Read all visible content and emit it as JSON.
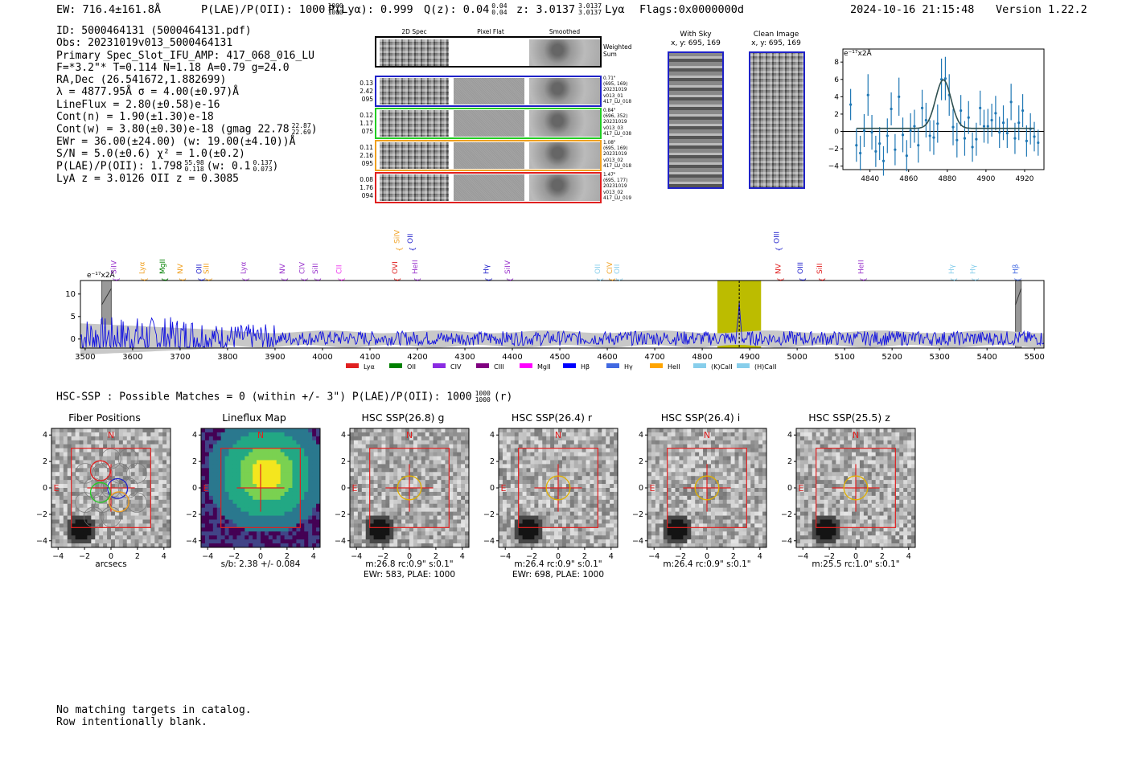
{
  "header": {
    "ew": "EW: 716.4±161.8Å",
    "plae": "P(LAE)/P(OII): 1000",
    "plae_hi": "1000",
    "plae_lo": "1000",
    "plya": "P(Lyα): 0.999",
    "qz": "Q(z): 0.04",
    "qz_hi": "0.04",
    "qz_lo": "0.04",
    "z": "z: 3.0137",
    "z_hi": "3.0137",
    "z_lo": "3.0137",
    "z_line": "Lyα",
    "flags": "Flags:0x0000000d",
    "timestamp": "2024-10-16 21:15:48",
    "version": "Version 1.22.2"
  },
  "info": {
    "id": "ID: 5000464131 (5000464131.pdf)",
    "obs": "Obs: 20231019v013_5000464131",
    "slot": "Primary Spec_Slot_IFU_AMP: 417_068_016_LU",
    "fwhm": "F=*3.2\"*  T=0.114  N=1.18  A=0.79  g=24.0",
    "radec": "RA,Dec (26.541672,1.882699)",
    "lambda": "λ = 4877.95Å   σ = 4.00(±0.97)Å",
    "lineflux": "LineFlux = 2.80(±0.58)e-16",
    "contn": "Cont(n) = 1.90(±1.30)e-18",
    "contw": "Cont(w) = 3.80(±0.30)e-18 (gmag 22.78",
    "contw_hi": "22.87",
    "contw_lo": "22.69",
    "ewr": "EWr = 36.00(±24.00) (w: 19.00(±4.10))Å",
    "sn": "S/N = 5.0(±0.6)  χ² = 1.0(±0.2)",
    "plae2": "P(LAE)/P(OII): 1.798",
    "plae2_hi": "55.98",
    "plae2_lo": "0.118",
    "plae2_w": "(w: 0.1",
    "plae2_w_hi": "0.137",
    "plae2_w_lo": "0.073",
    "lyaz": "LyA z = 3.0126  OII z = 0.3085"
  },
  "fiber_panel": {
    "col_2d": "2D Spec",
    "col_flat": "Pixel Flat",
    "col_smooth": "Smoothed",
    "weighted": "Weighted Sum",
    "rows": [
      {
        "left": [
          "0.13",
          "2.42",
          "095"
        ],
        "right": [
          "0.71\"",
          "(695, 169)",
          "20231019",
          "v013_01",
          "417_LU_018"
        ],
        "color": "#1f22c8"
      },
      {
        "left": [
          "0.12",
          "1.17",
          "075"
        ],
        "right": [
          "0.84\"",
          "(696, 352)",
          "20231019",
          "v013_03",
          "417_LU_038"
        ],
        "color": "#22cc22"
      },
      {
        "left": [
          "0.11",
          "2.16",
          "095"
        ],
        "right": [
          "1.08\"",
          "(695, 169)",
          "20231019",
          "v013_02",
          "417_LU_018"
        ],
        "color": "#f0a020"
      },
      {
        "left": [
          "0.08",
          "1.76",
          "094"
        ],
        "right": [
          "1.47\"",
          "(695, 177)",
          "20231019",
          "v013_02",
          "417_LU_019"
        ],
        "color": "#e02020"
      }
    ]
  },
  "sky": {
    "with_sky": "With Sky",
    "with_sky_xy": "x, y: 695, 169",
    "clean": "Clean Image",
    "clean_xy": "x, y: 695, 169"
  },
  "fit_plot": {
    "unit": "e⁻¹⁷x2Å",
    "xticks": [
      "4840",
      "4860",
      "4880",
      "4900",
      "4920"
    ],
    "yticks": [
      "8",
      "6",
      "4",
      "2",
      "0",
      "−2",
      "−4"
    ]
  },
  "chart_data": [
    {
      "type": "scatter",
      "title": "",
      "ylabel": "e-17 x2Å",
      "xlim": [
        4826,
        4930
      ],
      "ylim": [
        -4.4,
        9.5
      ],
      "points_x": [
        4830,
        4833,
        4835,
        4837,
        4839,
        4841,
        4843,
        4845,
        4847,
        4849,
        4851,
        4853,
        4855,
        4857,
        4859,
        4861,
        4863,
        4865,
        4867,
        4869,
        4871,
        4873,
        4875,
        4877,
        4879,
        4881,
        4883,
        4885,
        4887,
        4889,
        4891,
        4893,
        4895,
        4897,
        4899,
        4901,
        4903,
        4905,
        4907,
        4909,
        4911,
        4913,
        4915,
        4917,
        4919,
        4921,
        4923,
        4925,
        4927
      ],
      "points_y": [
        3.1,
        -1.6,
        -2.5,
        0.1,
        4.2,
        -0.1,
        -2.3,
        -1.4,
        -3.4,
        -0.5,
        2.6,
        -2.1,
        4,
        -0.4,
        -2.8,
        0.1,
        0.6,
        -1.6,
        2.7,
        1.3,
        -0.5,
        -0.7,
        0.9,
        6,
        6.1,
        4.2,
        0.5,
        -1,
        2.4,
        -0.8,
        1.6,
        -1.8,
        -0.9,
        2.7,
        0.6,
        0.6,
        1.3,
        2.1,
        -0.1,
        1,
        -0.2,
        3.4,
        -0.8,
        1,
        2.4,
        -1.1,
        0.3,
        -0.6,
        -1.3
      ],
      "errors": [
        1.8,
        1.9,
        2,
        1.9,
        2.4,
        2,
        1.8,
        1.9,
        1.7,
        2,
        1.9,
        1.8,
        2.2,
        2,
        1.8,
        2,
        1.9,
        2,
        2.1,
        2,
        1.8,
        2,
        2.2,
        2.4,
        2.5,
        2.4,
        2.1,
        2,
        1.8,
        2,
        1.9,
        1.7,
        1.9,
        2,
        1.9,
        2,
        1.9,
        2,
        1.8,
        2,
        1.7,
        2.1,
        1.8,
        2,
        1.9,
        1.8,
        1.8,
        1.7,
        1.5
      ],
      "model": {
        "center": 4877.95,
        "sigma": 4.0,
        "amplitude": 5.6,
        "baseline": 0.35
      }
    },
    {
      "type": "line",
      "xlabel": "",
      "ylabel": "e-17x2Å",
      "xlim": [
        3490,
        5520
      ],
      "ylim": [
        -2,
        13
      ],
      "xticks": [
        3500,
        3600,
        3700,
        3800,
        3900,
        4000,
        4100,
        4200,
        4300,
        4400,
        4500,
        4600,
        4700,
        4800,
        4900,
        5000,
        5100,
        5200,
        5300,
        5400,
        5500
      ],
      "yticks": [
        0,
        5,
        10
      ],
      "highlight_band": [
        4832,
        4924
      ],
      "peak_marker": 4878,
      "masked_bands": [
        [
          3535,
          3555
        ],
        [
          5460,
          5472
        ]
      ],
      "line_labels": [
        {
          "label": "SiIV",
          "x": 3565,
          "color": "#9933cc",
          "upper": false
        },
        {
          "label": "Lyα",
          "x": 3625,
          "color": "#f0a020",
          "upper": false
        },
        {
          "label": "MgII",
          "x": 3668,
          "color": "#008000",
          "upper": false
        },
        {
          "label": "NV",
          "x": 3705,
          "color": "#f0a020",
          "upper": false
        },
        {
          "label": "OII",
          "x": 3745,
          "color": "#2222cc",
          "upper": false
        },
        {
          "label": "SiII",
          "x": 3760,
          "color": "#f0a020",
          "upper": false
        },
        {
          "label": "Lyα",
          "x": 3838,
          "color": "#9933cc",
          "upper": false
        },
        {
          "label": "NV",
          "x": 3920,
          "color": "#9933cc",
          "upper": false
        },
        {
          "label": "CIV",
          "x": 3962,
          "color": "#9933cc",
          "upper": false
        },
        {
          "label": "SiII",
          "x": 3990,
          "color": "#9933cc",
          "upper": false
        },
        {
          "label": "CII",
          "x": 4040,
          "color": "#ee33ee",
          "upper": false
        },
        {
          "label": "OVI",
          "x": 4158,
          "color": "#e02020",
          "upper": false
        },
        {
          "label": "SiIV",
          "x": 4162,
          "color": "#f0a020",
          "upper": true
        },
        {
          "label": "OII",
          "x": 4190,
          "color": "#2222cc",
          "upper": true
        },
        {
          "label": "HeII",
          "x": 4200,
          "color": "#9933cc",
          "upper": false
        },
        {
          "label": "Hγ",
          "x": 4350,
          "color": "#2222cc",
          "upper": false
        },
        {
          "label": "SiIV",
          "x": 4395,
          "color": "#9933cc",
          "upper": false
        },
        {
          "label": "OII",
          "x": 4585,
          "color": "#87ceeb",
          "upper": false
        },
        {
          "label": "CIV",
          "x": 4610,
          "color": "#f0a020",
          "upper": false
        },
        {
          "label": "OII",
          "x": 4625,
          "color": "#87ceeb",
          "upper": false
        },
        {
          "label": "OIII",
          "x": 4962,
          "color": "#2222cc",
          "upper": true
        },
        {
          "label": "NV",
          "x": 4965,
          "color": "#e02020",
          "upper": false
        },
        {
          "label": "OIII",
          "x": 5012,
          "color": "#2222cc",
          "upper": false
        },
        {
          "label": "SiII",
          "x": 5052,
          "color": "#e02020",
          "upper": false
        },
        {
          "label": "HeII",
          "x": 5140,
          "color": "#9933cc",
          "upper": false
        },
        {
          "label": "Hγ",
          "x": 5330,
          "color": "#87ceeb",
          "upper": false
        },
        {
          "label": "Hγ",
          "x": 5375,
          "color": "#87ceeb",
          "upper": false
        },
        {
          "label": "Hβ",
          "x": 5465,
          "color": "#4169e1",
          "upper": false
        }
      ],
      "legend": [
        {
          "label": "Lyα",
          "color": "#e02020"
        },
        {
          "label": "OII",
          "color": "#008000"
        },
        {
          "label": "CIV",
          "color": "#8a2be2"
        },
        {
          "label": "CIII",
          "color": "#800080"
        },
        {
          "label": "MgII",
          "color": "#ff00ff"
        },
        {
          "label": "Hβ",
          "color": "#0000ff"
        },
        {
          "label": "Hγ",
          "color": "#4169e1"
        },
        {
          "label": "HeII",
          "color": "#ffa500"
        },
        {
          "label": "(K)CaII",
          "color": "#87ceeb"
        },
        {
          "label": "(H)CaII",
          "color": "#87ceeb"
        }
      ]
    }
  ],
  "hsc": {
    "summary": "HSC-SSP : Possible Matches = 0 (within +/- 3\")  P(LAE)/P(OII): 1000",
    "summary_hi": "1000",
    "summary_lo": "1000",
    "summary_suffix": "(r)",
    "ticks": [
      "4",
      "2",
      "0",
      "−2",
      "−4"
    ],
    "xticks": [
      "−4",
      "−2",
      "0",
      "2",
      "4"
    ],
    "compass_n": "N",
    "compass_e": "E",
    "panels": [
      {
        "title": "Fiber Positions",
        "caption1": "arcsecs",
        "caption2": ""
      },
      {
        "title": "Lineflux Map",
        "caption1": "s/b: 2.38 +/- 0.084",
        "caption2": ""
      },
      {
        "title": "HSC SSP(26.8) g",
        "caption1": "m:26.8 rc:0.9\"  s:0.1\"",
        "caption2": "EWr: 583, PLAE: 1000"
      },
      {
        "title": "HSC SSP(26.4) r",
        "caption1": "m:26.4 rc:0.9\"  s:0.1\"",
        "caption2": "EWr: 698, PLAE: 1000"
      },
      {
        "title": "HSC SSP(26.4) i",
        "caption1": "m:26.4 rc:0.9\"  s:0.1\"",
        "caption2": ""
      },
      {
        "title": "HSC SSP(25.5) z",
        "caption1": "m:25.5 rc:1.0\"  s:0.1\"",
        "caption2": ""
      }
    ]
  },
  "footer": {
    "line1": "No matching targets in catalog.",
    "line2": "Row intentionally blank."
  }
}
